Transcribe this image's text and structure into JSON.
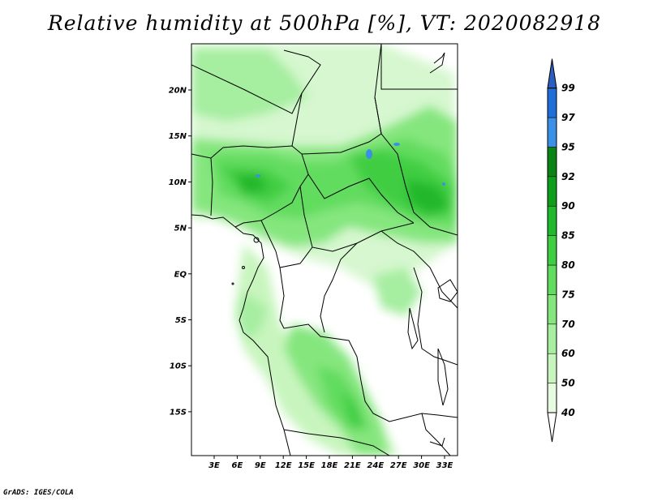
{
  "title": "Relative humidity at 500hPa [%], VT: 2020082918",
  "credit": "GrADS: IGES/COLA",
  "map": {
    "lat_labels": [
      "20N",
      "15N",
      "10N",
      "5N",
      "EQ",
      "5S",
      "10S",
      "15S"
    ],
    "lon_labels": [
      "3E",
      "6E",
      "9E",
      "12E",
      "15E",
      "18E",
      "21E",
      "24E",
      "27E",
      "30E",
      "33E"
    ]
  },
  "colorbar": {
    "levels": [
      "40",
      "50",
      "60",
      "70",
      "75",
      "80",
      "85",
      "90",
      "92",
      "95",
      "97",
      "99"
    ],
    "colors": [
      "#ffffff",
      "#e6fbe0",
      "#c8f5be",
      "#a6eea0",
      "#85e67e",
      "#62dc5e",
      "#3fcd42",
      "#22b82c",
      "#0f9e1c",
      "#0a8414",
      "#3a8fe6",
      "#1f6fd8",
      "#2a5ec0"
    ]
  }
}
